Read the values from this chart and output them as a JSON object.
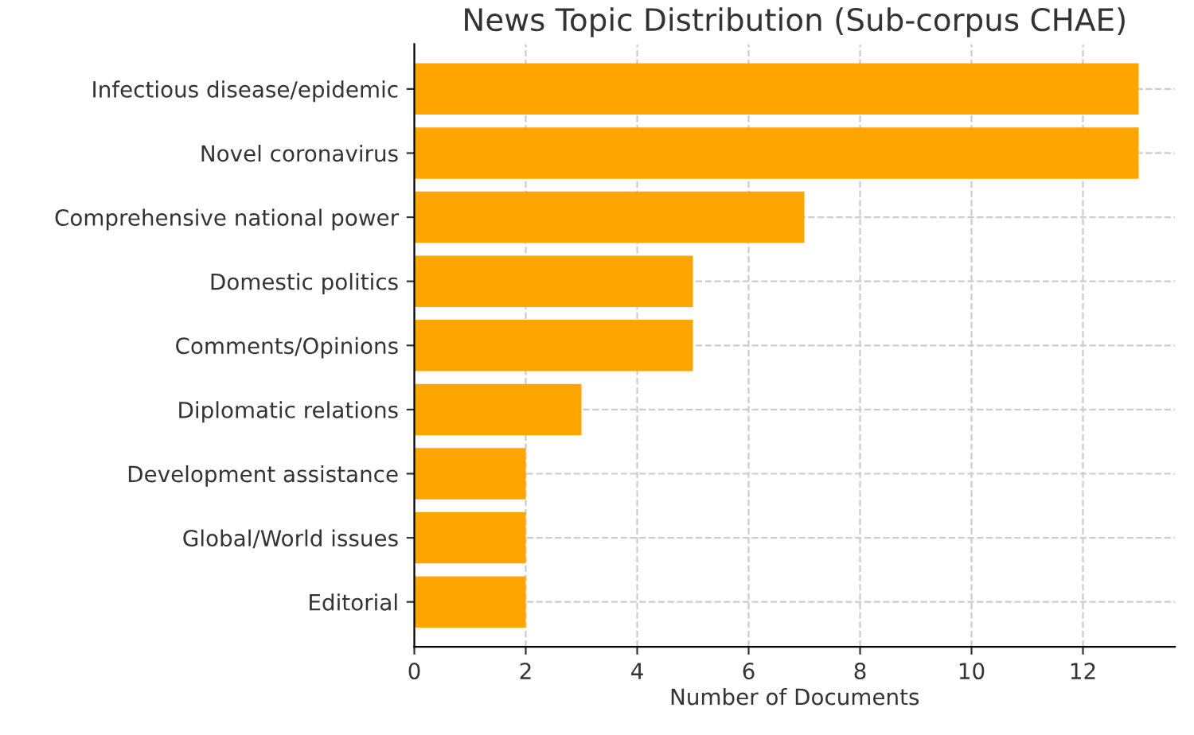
{
  "chart_data": {
    "type": "bar",
    "orientation": "horizontal",
    "title": "News Topic Distribution (Sub-corpus CHAE)",
    "xlabel": "Number of Documents",
    "categories": [
      "Infectious disease/epidemic",
      "Novel coronavirus",
      "Comprehensive national power",
      "Domestic politics",
      "Comments/Opinions",
      "Diplomatic relations",
      "Development assistance",
      "Global/World issues",
      "Editorial"
    ],
    "values": [
      13,
      13,
      7,
      5,
      5,
      3,
      2,
      2,
      2
    ],
    "color": "#ffa500",
    "xlim": [
      0,
      13.65
    ],
    "xticks": [
      0,
      2,
      4,
      6,
      8,
      10,
      12
    ],
    "grid": true
  }
}
